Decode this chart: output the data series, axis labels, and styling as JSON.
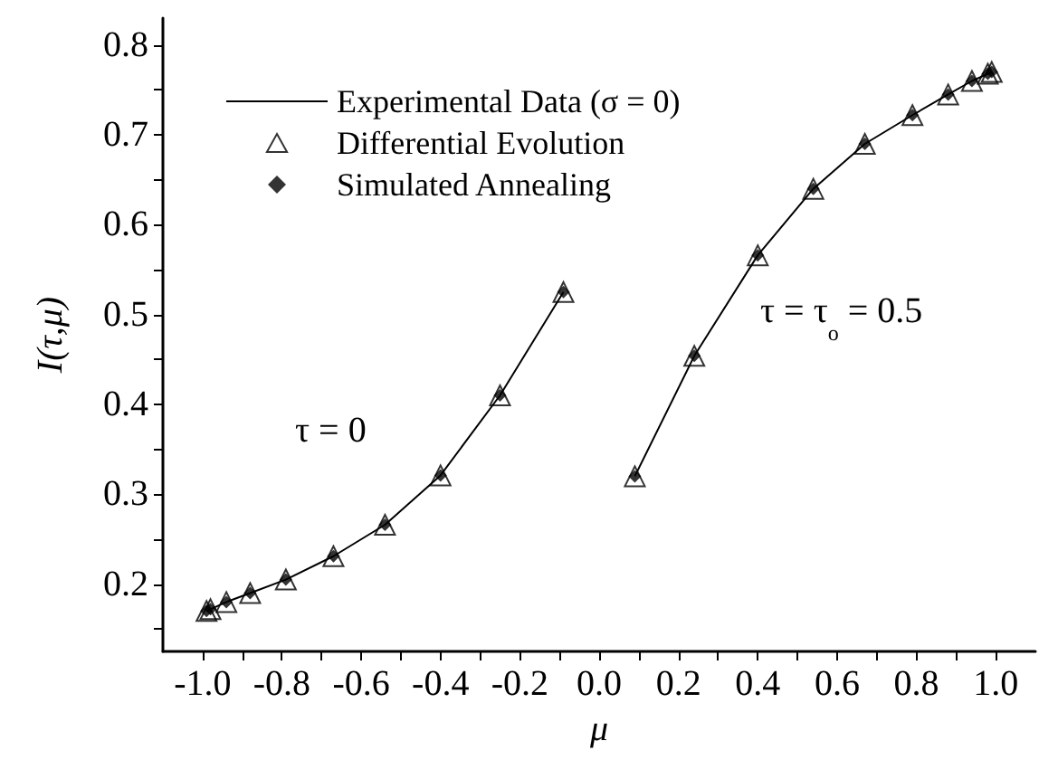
{
  "chart_data": {
    "type": "line",
    "xlabel": "μ",
    "ylabel": "I(τ,μ)",
    "xlim": [
      -1.1,
      1.1
    ],
    "ylim": [
      0.125,
      0.83
    ],
    "xticks": [
      {
        "value": -1.0,
        "label": "-1.0"
      },
      {
        "value": -0.9,
        "label": null
      },
      {
        "value": -0.8,
        "label": "-0.8"
      },
      {
        "value": -0.7,
        "label": null
      },
      {
        "value": -0.6,
        "label": "-0.6"
      },
      {
        "value": -0.5,
        "label": null
      },
      {
        "value": -0.4,
        "label": "-0.4"
      },
      {
        "value": -0.3,
        "label": null
      },
      {
        "value": -0.2,
        "label": "-0.2"
      },
      {
        "value": -0.1,
        "label": null
      },
      {
        "value": 0,
        "label": "0.0"
      },
      {
        "value": 0.1,
        "label": null
      },
      {
        "value": 0.2,
        "label": "0.2"
      },
      {
        "value": 0.3,
        "label": null
      },
      {
        "value": 0.4,
        "label": "0.4"
      },
      {
        "value": 0.5,
        "label": null
      },
      {
        "value": 0.6,
        "label": "0.6"
      },
      {
        "value": 0.7,
        "label": null
      },
      {
        "value": 0.8,
        "label": "0.8"
      },
      {
        "value": 0.9,
        "label": null
      },
      {
        "value": 1.0,
        "label": "1.0"
      }
    ],
    "yticks": [
      {
        "value": 0.15,
        "label": null
      },
      0.2,
      {
        "value": 0.25,
        "label": null
      },
      0.3,
      {
        "value": 0.35,
        "label": null
      },
      0.4,
      {
        "value": 0.45,
        "label": null
      },
      0.5,
      {
        "value": 0.55,
        "label": null
      },
      0.6,
      {
        "value": 0.65,
        "label": null
      },
      0.7,
      {
        "value": 0.75,
        "label": null
      },
      0.8
    ],
    "x": [
      -0.99,
      -0.98,
      -0.94,
      -0.88,
      -0.79,
      -0.67,
      -0.54,
      -0.4,
      -0.25,
      -0.09,
      0,
      0.09,
      0.24,
      0.4,
      0.54,
      0.67,
      0.79,
      0.88,
      0.94,
      0.98,
      0.99
    ],
    "series": [
      {
        "name": "Experimental Data (σ = 0)",
        "type": "line",
        "color": "#000000",
        "marker": "none",
        "values": [
          0.17,
          0.172,
          0.18,
          0.19,
          0.205,
          0.231,
          0.266,
          0.321,
          0.41,
          0.525,
          null,
          0.32,
          0.454,
          0.566,
          0.64,
          0.69,
          0.722,
          0.745,
          0.76,
          0.768,
          0.77
        ]
      },
      {
        "name": "Differential Evolution",
        "type": "scatter",
        "color": "#000000",
        "marker": "triangle",
        "values": [
          0.17,
          0.172,
          0.18,
          0.19,
          0.205,
          0.231,
          0.266,
          0.321,
          0.41,
          0.525,
          null,
          0.32,
          0.454,
          0.566,
          0.64,
          0.69,
          0.722,
          0.745,
          0.76,
          0.768,
          0.77
        ]
      },
      {
        "name": "Simulated Annealing",
        "type": "scatter",
        "color": "#000000",
        "marker": "diamond",
        "values": [
          0.17,
          0.172,
          0.18,
          0.19,
          0.205,
          0.231,
          0.266,
          0.321,
          0.41,
          0.525,
          null,
          0.32,
          0.454,
          0.566,
          0.64,
          0.69,
          0.722,
          0.745,
          0.76,
          0.768,
          0.77
        ]
      }
    ],
    "annotations": [
      "τ = 0",
      "τ = τ$_{o}$ = 0.5"
    ],
    "legend": "top left",
    "grid": false,
    "line_style": "solid"
  }
}
